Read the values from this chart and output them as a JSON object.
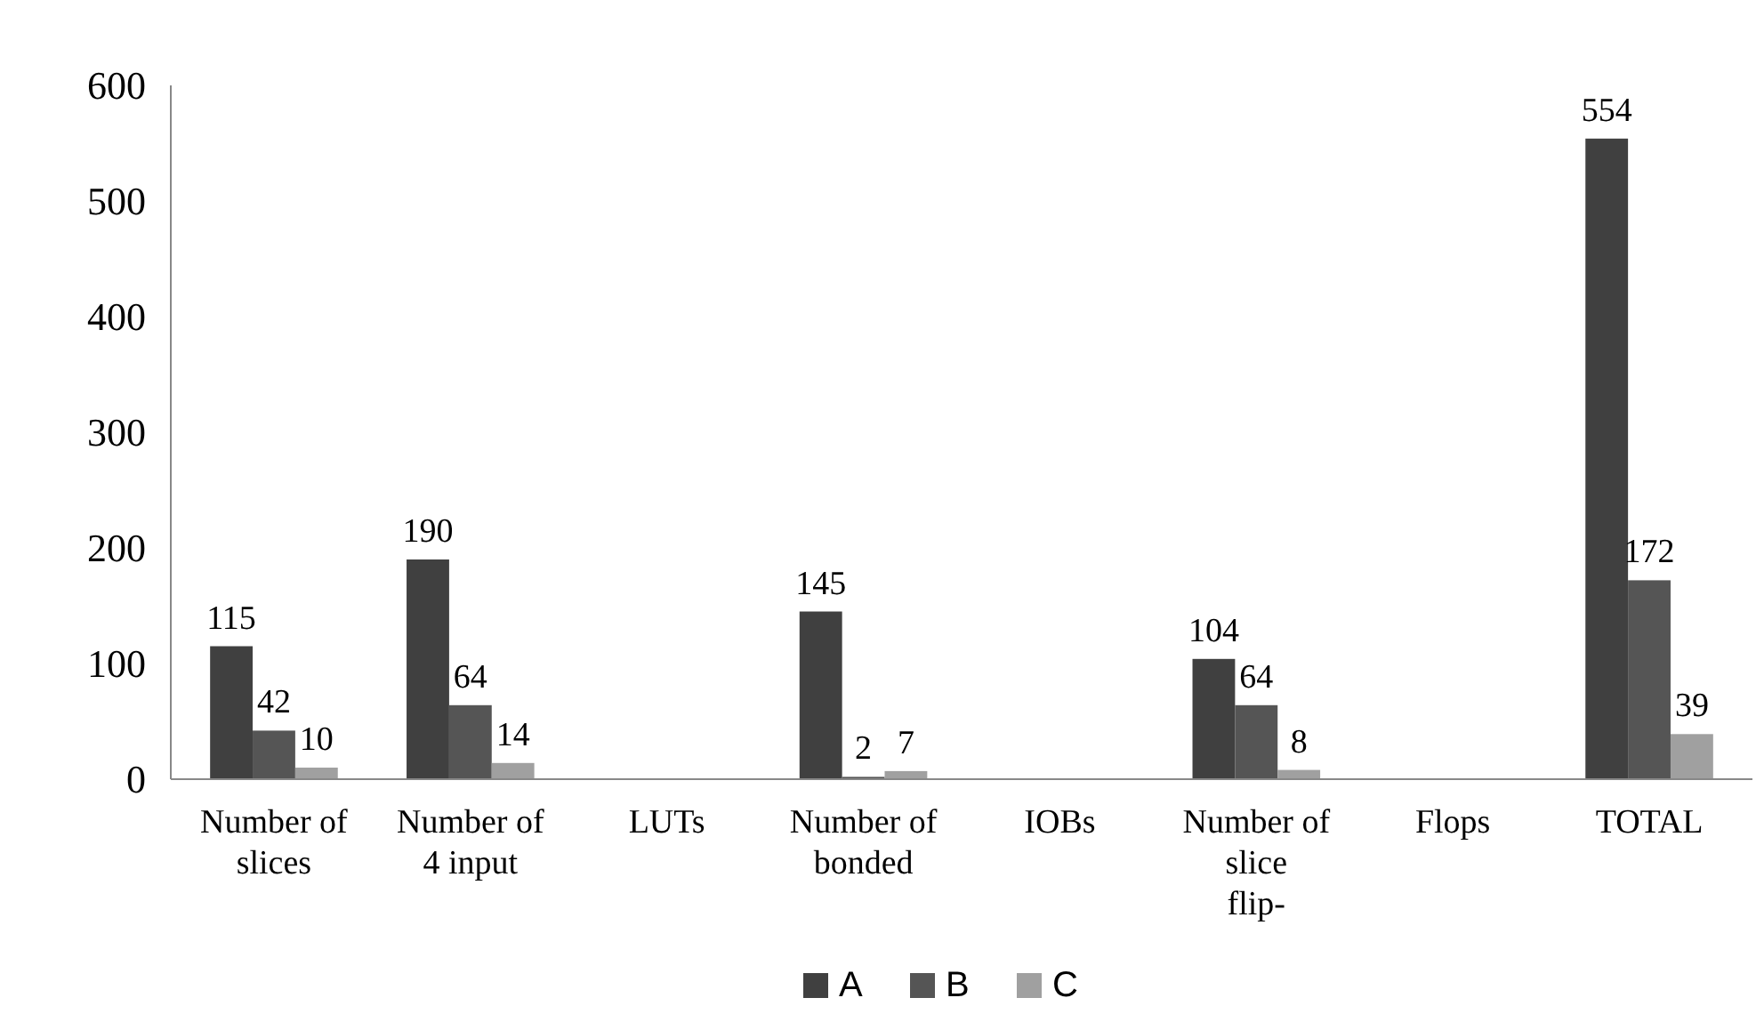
{
  "chart_data": {
    "type": "bar",
    "categories": [
      "Number of slices",
      "Number of 4 input",
      "LUTs",
      "Number of bonded",
      "IOBs",
      "Number of slice flip-",
      "Flops",
      "TOTAL"
    ],
    "series": [
      {
        "name": "A",
        "color": "#404040",
        "values": [
          115,
          190,
          null,
          145,
          null,
          104,
          null,
          554
        ]
      },
      {
        "name": "B",
        "color": "#555555",
        "values": [
          42,
          64,
          null,
          2,
          null,
          64,
          null,
          172
        ]
      },
      {
        "name": "C",
        "color": "#a0a0a0",
        "values": [
          10,
          14,
          null,
          7,
          null,
          8,
          null,
          39
        ]
      }
    ],
    "ylim": [
      0,
      600
    ],
    "yticks": [
      0,
      100,
      200,
      300,
      400,
      500,
      600
    ],
    "data_labels": true,
    "legend": "bottom",
    "grid": false
  }
}
